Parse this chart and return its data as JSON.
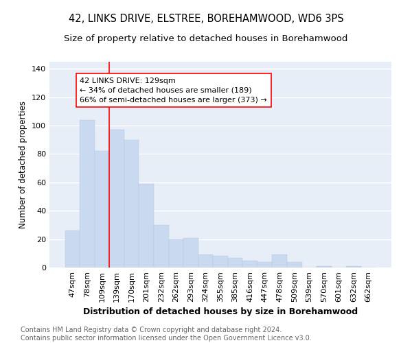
{
  "title": "42, LINKS DRIVE, ELSTREE, BOREHAMWOOD, WD6 3PS",
  "subtitle": "Size of property relative to detached houses in Borehamwood",
  "xlabel": "Distribution of detached houses by size in Borehamwood",
  "ylabel": "Number of detached properties",
  "categories": [
    "47sqm",
    "78sqm",
    "109sqm",
    "139sqm",
    "170sqm",
    "201sqm",
    "232sqm",
    "262sqm",
    "293sqm",
    "324sqm",
    "355sqm",
    "385sqm",
    "416sqm",
    "447sqm",
    "478sqm",
    "509sqm",
    "539sqm",
    "570sqm",
    "601sqm",
    "632sqm",
    "662sqm"
  ],
  "values": [
    26,
    104,
    82,
    97,
    90,
    59,
    30,
    20,
    21,
    9,
    8,
    7,
    5,
    4,
    9,
    4,
    0,
    1,
    0,
    1,
    0
  ],
  "bar_color": "#c9d9ef",
  "bar_edge_color": "#b0c4de",
  "vline_x_index": 3,
  "vline_color": "red",
  "annotation_text": "42 LINKS DRIVE: 129sqm\n← 34% of detached houses are smaller (189)\n66% of semi-detached houses are larger (373) →",
  "annotation_box_color": "white",
  "annotation_box_edge_color": "red",
  "ylim": [
    0,
    145
  ],
  "yticks": [
    0,
    20,
    40,
    60,
    80,
    100,
    120,
    140
  ],
  "background_color": "#e8eef8",
  "grid_color": "white",
  "footer": "Contains HM Land Registry data © Crown copyright and database right 2024.\nContains public sector information licensed under the Open Government Licence v3.0.",
  "title_fontsize": 10.5,
  "subtitle_fontsize": 9.5,
  "xlabel_fontsize": 9,
  "ylabel_fontsize": 8.5,
  "footer_fontsize": 7,
  "tick_fontsize": 8
}
